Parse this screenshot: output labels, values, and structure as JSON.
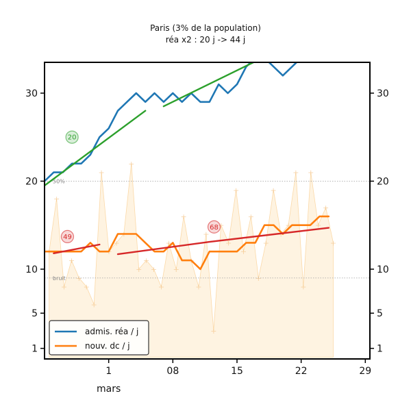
{
  "chart_data": {
    "type": "line",
    "title": "Paris (3% de la population)",
    "subtitle": "réa x2 : 20 j -> 44 j",
    "xlabel": "",
    "ylabel": "",
    "xlim": [
      -6,
      29.5
    ],
    "ylim": [
      -0.2,
      33.5
    ],
    "y_ticks": [
      {
        "value": 1,
        "label": "1"
      },
      {
        "value": 5,
        "label": "5"
      },
      {
        "value": 10,
        "label": "10"
      },
      {
        "value": 20,
        "label": "20"
      },
      {
        "value": 30,
        "label": "30"
      }
    ],
    "x_ticks": [
      {
        "value": 1,
        "label": "1",
        "sublabel": "mars"
      },
      {
        "value": 8,
        "label": "08"
      },
      {
        "value": 15,
        "label": "15"
      },
      {
        "value": 22,
        "label": "22"
      },
      {
        "value": 29,
        "label": "29"
      }
    ],
    "reference_lines": [
      {
        "value": 20,
        "label": "50%"
      },
      {
        "value": 9,
        "label": "bruit"
      }
    ],
    "legend_position": "lower-left",
    "series": [
      {
        "name": "admis. réa / j",
        "color": "#1f77b4",
        "points": [
          [
            -6,
            20
          ],
          [
            -5,
            21
          ],
          [
            -4,
            21
          ],
          [
            -3,
            22
          ],
          [
            -2,
            22
          ],
          [
            -1,
            23
          ],
          [
            0,
            25
          ],
          [
            1,
            26
          ],
          [
            2,
            28
          ],
          [
            3,
            29
          ],
          [
            4,
            30
          ],
          [
            5,
            29
          ],
          [
            6,
            30
          ],
          [
            7,
            29
          ],
          [
            8,
            30
          ],
          [
            9,
            29
          ],
          [
            10,
            30
          ],
          [
            11,
            29
          ],
          [
            12,
            29
          ],
          [
            13,
            31
          ],
          [
            14,
            30
          ],
          [
            15,
            31
          ],
          [
            16,
            33
          ],
          [
            17,
            34
          ],
          [
            18,
            34
          ],
          [
            19,
            33
          ],
          [
            20,
            32
          ],
          [
            21,
            33
          ],
          [
            22,
            34
          ]
        ]
      },
      {
        "name": "nouv. dc / j",
        "color": "#ff7f0e",
        "points": [
          [
            -6,
            12
          ],
          [
            -5,
            12
          ],
          [
            -4,
            12
          ],
          [
            -3,
            12
          ],
          [
            -2,
            12
          ],
          [
            -1,
            13
          ],
          [
            0,
            12
          ],
          [
            1,
            12
          ],
          [
            2,
            14
          ],
          [
            3,
            14
          ],
          [
            4,
            14
          ],
          [
            5,
            13
          ],
          [
            6,
            12
          ],
          [
            7,
            12
          ],
          [
            8,
            13
          ],
          [
            9,
            11
          ],
          [
            10,
            11
          ],
          [
            11,
            10
          ],
          [
            12,
            12
          ],
          [
            13,
            12
          ],
          [
            14,
            12
          ],
          [
            15,
            12
          ],
          [
            16,
            13
          ],
          [
            17,
            13
          ],
          [
            18,
            15
          ],
          [
            19,
            15
          ],
          [
            20,
            14
          ],
          [
            21,
            15
          ],
          [
            22,
            15
          ],
          [
            23,
            15
          ],
          [
            24,
            16
          ],
          [
            25,
            16
          ]
        ]
      }
    ],
    "daily_counts": [
      12,
      18,
      8,
      11,
      9,
      8,
      6,
      21,
      12,
      13,
      14,
      22,
      10,
      11,
      10,
      8,
      13,
      10,
      16,
      11,
      8,
      14,
      3,
      15,
      13,
      19,
      12,
      16,
      9,
      13,
      19,
      14,
      15,
      21,
      8,
      21,
      15,
      17,
      13
    ],
    "fit_lines": [
      {
        "color": "#2ca02c",
        "points": [
          [
            -6,
            19.5
          ],
          [
            5,
            28
          ]
        ]
      },
      {
        "color": "#2ca02c",
        "points": [
          [
            7,
            28.5
          ],
          [
            17,
            33.6
          ]
        ]
      },
      {
        "color": "#d62728",
        "points": [
          [
            -5,
            11.8
          ],
          [
            0,
            12.8
          ]
        ]
      },
      {
        "color": "#d62728",
        "points": [
          [
            2,
            11.7
          ],
          [
            12,
            13.1
          ],
          [
            25,
            14.7
          ]
        ]
      }
    ],
    "annotations": [
      {
        "text": "20",
        "x": -3,
        "y": 25,
        "color": "#2ca02c"
      },
      {
        "text": "49",
        "x": -3.5,
        "y": 13.7,
        "color": "#d62728"
      },
      {
        "text": "68",
        "x": 12.5,
        "y": 14.8,
        "color": "#d62728"
      }
    ],
    "legend_entries": [
      {
        "label": "admis. réa / j",
        "color": "#1f77b4"
      },
      {
        "label": "nouv. dc / j",
        "color": "#ff7f0e"
      }
    ]
  }
}
